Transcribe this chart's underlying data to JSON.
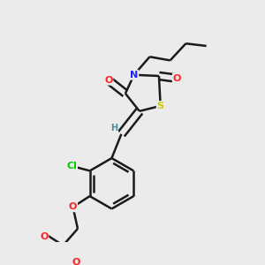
{
  "background_color": "#ebebeb",
  "bond_color": "#1a1a1a",
  "atom_colors": {
    "O": "#ff2020",
    "N": "#2020ff",
    "S": "#cccc00",
    "Cl": "#00cc00",
    "H": "#4a9090",
    "C": "#1a1a1a"
  },
  "figsize": [
    3.0,
    3.0
  ],
  "dpi": 100
}
